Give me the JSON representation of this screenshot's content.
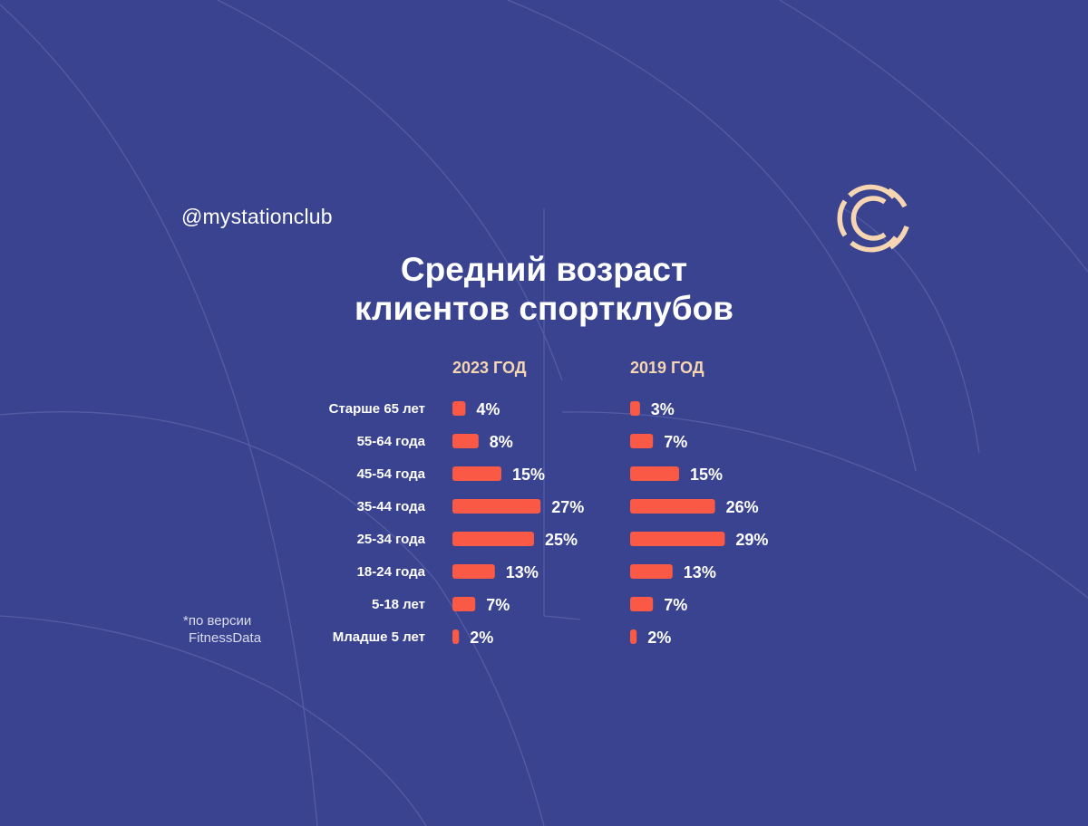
{
  "handle": "@mystationclub",
  "title_line1": "Средний возраст",
  "title_line2": "клиентов спортклубов",
  "footnote_line1": "*по версии",
  "footnote_line2": "FitnessData",
  "colors": {
    "background": "#3a438f",
    "bar": "#fa5a45",
    "header": "#f6d6b2",
    "logo": "#f6d6b2"
  },
  "chart_data": {
    "type": "bar",
    "orientation": "horizontal",
    "categories": [
      "Старше 65 лет",
      "55-64 года",
      "45-54 года",
      "35-44 года",
      "25-34 года",
      "18-24 года",
      "5-18 лет",
      "Младше 5 лет"
    ],
    "series": [
      {
        "name": "2023 ГОД",
        "values": [
          4,
          8,
          15,
          27,
          25,
          13,
          7,
          2
        ],
        "labels": [
          "4%",
          "8%",
          "15%",
          "27%",
          "25%",
          "13%",
          "7%",
          "2%"
        ]
      },
      {
        "name": "2019 ГОД",
        "values": [
          3,
          7,
          15,
          26,
          29,
          13,
          7,
          2
        ],
        "labels": [
          "3%",
          "7%",
          "15%",
          "26%",
          "29%",
          "13%",
          "7%",
          "2%"
        ]
      }
    ],
    "unit": "%",
    "grid": false
  }
}
